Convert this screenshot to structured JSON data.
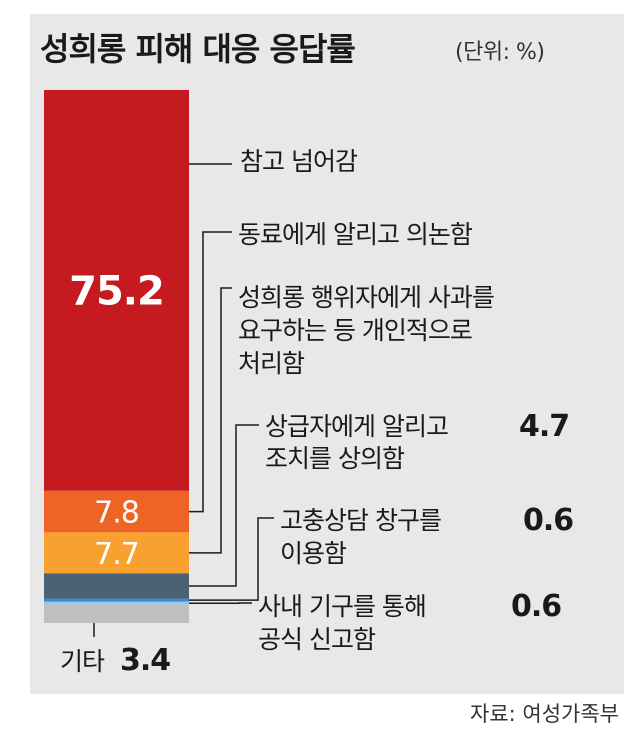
{
  "title": "성희롱 피해 대응 응답률",
  "unit": "(단위: %)",
  "source": "자료: 여성가족부",
  "colors": {
    "panel": "#e8e8e8",
    "leader": "#1a1a1a"
  },
  "chart_data": {
    "type": "bar",
    "orientation": "stacked-vertical",
    "title": "성희롱 피해 대응 응답률",
    "unit": "%",
    "ylim": [
      0,
      100
    ],
    "segments": [
      {
        "label_lines": [
          "참고 넘어감"
        ],
        "value": 75.2,
        "value_text": "75.2",
        "color": "#c41a20",
        "value_inside": true
      },
      {
        "label_lines": [
          "동료에게 알리고 의논함"
        ],
        "value": 7.8,
        "value_text": "7.8",
        "color": "#ee6424",
        "value_inside": true
      },
      {
        "label_lines": [
          "성희롱 행위자에게 사과를",
          "요구하는 등 개인적으로",
          "처리함"
        ],
        "value": 7.7,
        "value_text": "7.7",
        "color": "#f9a12e",
        "value_inside": true
      },
      {
        "label_lines": [
          "상급자에게 알리고",
          "조치를 상의함"
        ],
        "value": 4.7,
        "value_text": "4.7",
        "color": "#4a6274",
        "value_inside": false
      },
      {
        "label_lines": [
          "고충상담 창구를",
          "이용함"
        ],
        "value": 0.6,
        "value_text": "0.6",
        "color": "#3d87c8",
        "value_inside": false
      },
      {
        "label_lines": [
          "사내 기구를 통해",
          "공식 신고함"
        ],
        "value": 0.6,
        "value_text": "0.6",
        "color": "#9dc8e2",
        "value_inside": false
      },
      {
        "label_lines": [
          "기타"
        ],
        "value": 3.4,
        "value_text": "3.4",
        "color": "#bfbfbf",
        "value_inside": false,
        "below": true
      }
    ]
  }
}
